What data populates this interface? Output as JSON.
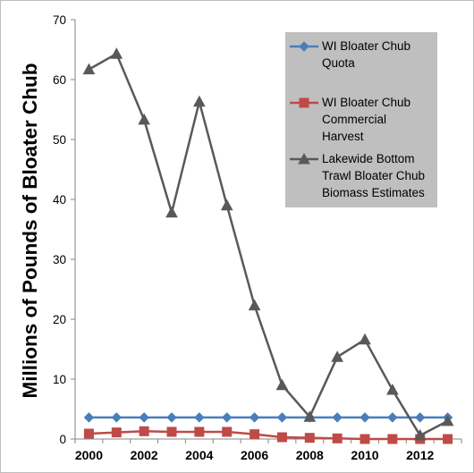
{
  "chart_data": {
    "type": "line",
    "title": "",
    "xlabel": "",
    "ylabel": "Millions of Pounds of Bloater Chub",
    "ylim": [
      0,
      70
    ],
    "yticks": [
      "0",
      "10",
      "20",
      "30",
      "40",
      "50",
      "60",
      "70"
    ],
    "xlim": [
      2000,
      2013
    ],
    "xticks": [
      "2000",
      "2002",
      "2004",
      "2006",
      "2008",
      "2010",
      "2012"
    ],
    "grid": false,
    "legend_position": "top-right",
    "x": [
      2000,
      2001,
      2002,
      2003,
      2004,
      2005,
      2006,
      2007,
      2008,
      2009,
      2010,
      2011,
      2012,
      2013
    ],
    "series": [
      {
        "name": "WI Bloater Chub Quota",
        "legend_lines": [
          "WI Bloater Chub",
          "Quota"
        ],
        "color": "#4a7ebb",
        "marker": "diamond",
        "values": [
          3.6,
          3.6,
          3.6,
          3.6,
          3.6,
          3.6,
          3.6,
          3.6,
          3.6,
          3.6,
          3.6,
          3.6,
          3.6,
          3.6
        ]
      },
      {
        "name": "WI Bloater Chub Commercial Harvest",
        "legend_lines": [
          "WI Bloater Chub",
          "Commercial",
          "Harvest"
        ],
        "color": "#be4b48",
        "marker": "square",
        "values": [
          0.9,
          1.1,
          1.3,
          1.2,
          1.2,
          1.2,
          0.8,
          0.3,
          0.2,
          0.1,
          0.0,
          0.0,
          0.0,
          0.0
        ]
      },
      {
        "name": "Lakewide Bottom Trawl Bloater Chub Biomass Estimates",
        "legend_lines": [
          "Lakewide Bottom",
          "Trawl Bloater Chub",
          "Biomass Estimates"
        ],
        "color": "#595959",
        "marker": "triangle",
        "values": [
          61.7,
          64.3,
          53.3,
          37.8,
          56.3,
          39.0,
          22.3,
          9.0,
          3.7,
          13.7,
          16.6,
          8.2,
          0.6,
          3.0
        ]
      }
    ]
  }
}
